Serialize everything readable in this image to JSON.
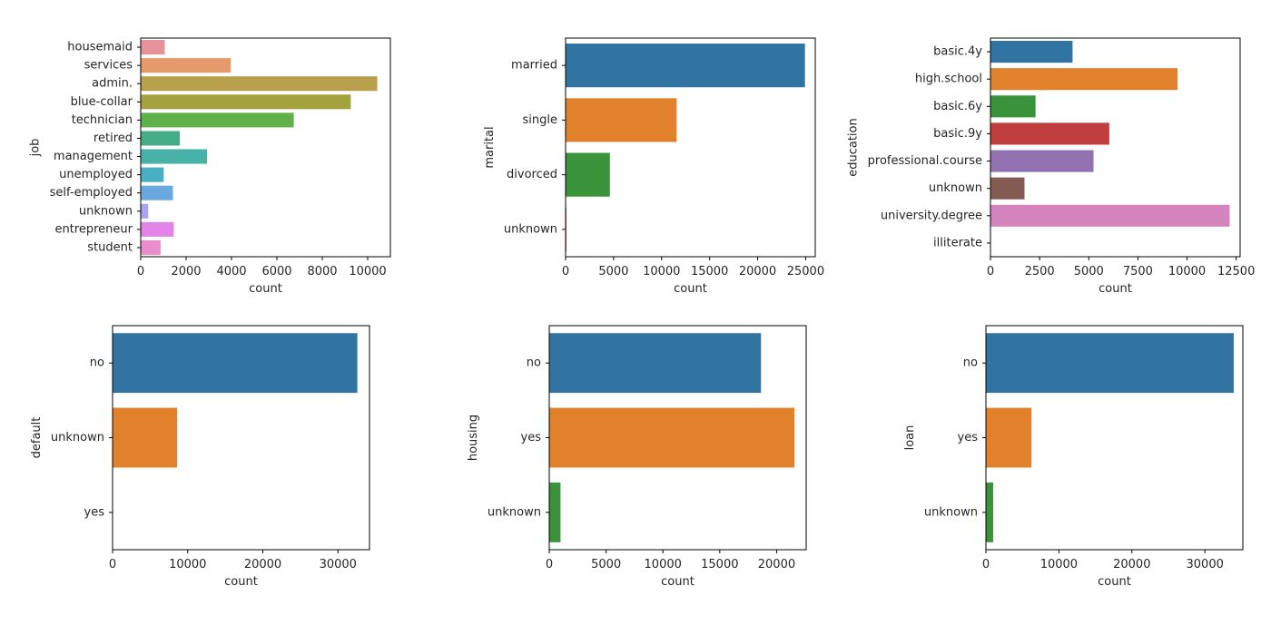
{
  "chart_data": [
    {
      "type": "bar",
      "orientation": "horizontal",
      "ylabel": "job",
      "xlabel": "count",
      "xlim": [
        0,
        11000
      ],
      "xticks": [
        0,
        2000,
        4000,
        6000,
        8000,
        10000
      ],
      "categories": [
        "housemaid",
        "services",
        "admin.",
        "blue-collar",
        "technician",
        "retired",
        "management",
        "unemployed",
        "self-employed",
        "unknown",
        "entrepreneur",
        "student"
      ],
      "values": [
        1060,
        3969,
        10422,
        9254,
        6743,
        1720,
        2924,
        1014,
        1421,
        330,
        1456,
        875
      ],
      "colors": [
        "#e8939a",
        "#e59a6b",
        "#b9a04c",
        "#a4a33f",
        "#5fb24a",
        "#44ad86",
        "#48b2a8",
        "#4aafc3",
        "#6aa9e0",
        "#aba3ee",
        "#e384e8",
        "#ec8ccd"
      ],
      "grid": false
    },
    {
      "type": "bar",
      "orientation": "horizontal",
      "ylabel": "marital",
      "xlabel": "count",
      "xlim": [
        0,
        26000
      ],
      "xticks": [
        0,
        5000,
        10000,
        15000,
        20000,
        25000
      ],
      "categories": [
        "married",
        "single",
        "divorced",
        "unknown"
      ],
      "values": [
        24928,
        11568,
        4612,
        80
      ],
      "colors": [
        "#3274a1",
        "#e1812c",
        "#3a923a",
        "#c03d3e"
      ],
      "grid": false
    },
    {
      "type": "bar",
      "orientation": "horizontal",
      "ylabel": "education",
      "xlabel": "count",
      "xlim": [
        0,
        12700
      ],
      "xticks": [
        0,
        2500,
        5000,
        7500,
        10000,
        12500
      ],
      "categories": [
        "basic.4y",
        "high.school",
        "basic.6y",
        "basic.9y",
        "professional.course",
        "unknown",
        "university.degree",
        "illiterate"
      ],
      "values": [
        4176,
        9515,
        2292,
        6045,
        5243,
        1731,
        12168,
        18
      ],
      "colors": [
        "#3274a1",
        "#e1812c",
        "#3a923a",
        "#c03d3e",
        "#9372b2",
        "#845b53",
        "#d684bd",
        "#7f7f7f"
      ],
      "grid": false
    },
    {
      "type": "bar",
      "orientation": "horizontal",
      "ylabel": "default",
      "xlabel": "count",
      "xlim": [
        0,
        34200
      ],
      "xticks": [
        0,
        10000,
        20000,
        30000
      ],
      "categories": [
        "no",
        "unknown",
        "yes"
      ],
      "values": [
        32588,
        8597,
        3
      ],
      "colors": [
        "#3274a1",
        "#e1812c",
        "#3a923a"
      ],
      "grid": false
    },
    {
      "type": "bar",
      "orientation": "horizontal",
      "ylabel": "housing",
      "xlabel": "count",
      "xlim": [
        0,
        22600
      ],
      "xticks": [
        0,
        5000,
        10000,
        15000,
        20000
      ],
      "categories": [
        "no",
        "yes",
        "unknown"
      ],
      "values": [
        18622,
        21576,
        990
      ],
      "colors": [
        "#3274a1",
        "#e1812c",
        "#3a923a"
      ],
      "grid": false
    },
    {
      "type": "bar",
      "orientation": "horizontal",
      "ylabel": "loan",
      "xlabel": "count",
      "xlim": [
        0,
        35200
      ],
      "xticks": [
        0,
        10000,
        20000,
        30000
      ],
      "categories": [
        "no",
        "yes",
        "unknown"
      ],
      "values": [
        33950,
        6248,
        990
      ],
      "colors": [
        "#3274a1",
        "#e1812c",
        "#3a923a"
      ],
      "grid": false
    }
  ]
}
